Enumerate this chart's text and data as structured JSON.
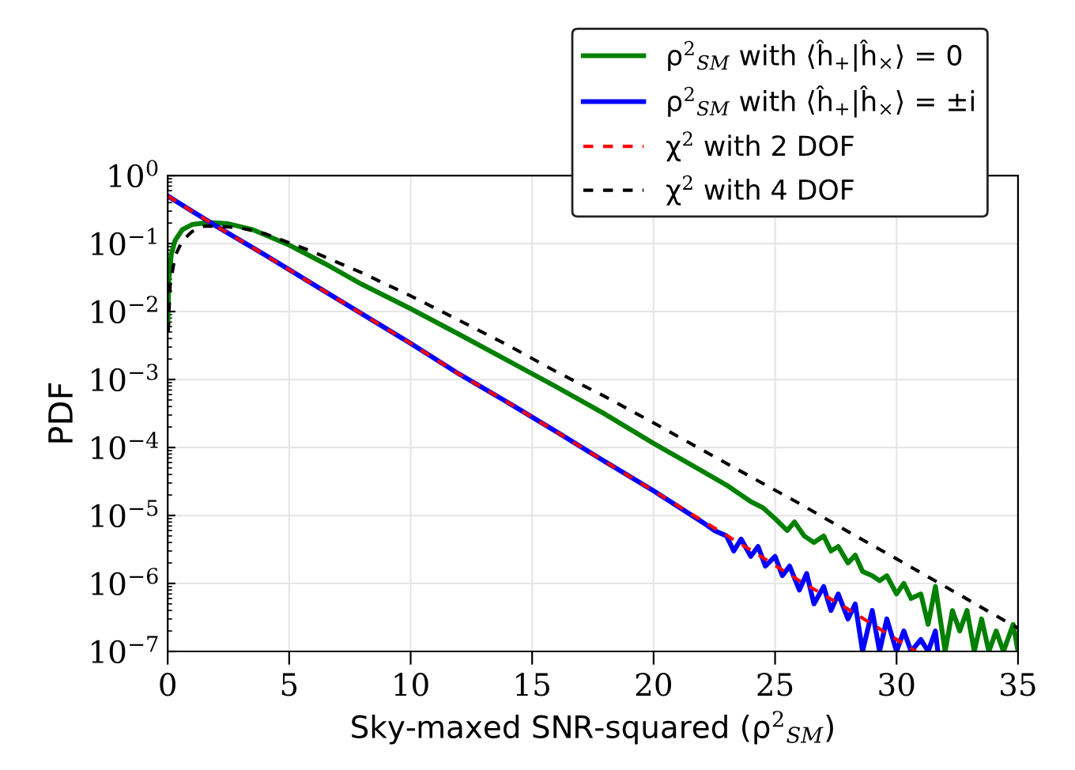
{
  "chart_data": {
    "type": "line",
    "xlabel": "Sky-maxed SNR-squared (ρ$^{2}$$_{SM}$)",
    "ylabel": "PDF",
    "log": "y",
    "xlim": [
      0,
      35
    ],
    "ylim": [
      1e-07,
      1
    ],
    "xticks": [
      0,
      5,
      10,
      15,
      20,
      25,
      30,
      35
    ],
    "yticks": [
      {
        "value": 1e-07,
        "label": "10$^{−7}$"
      },
      {
        "value": 1e-06,
        "label": "10$^{−6}$"
      },
      {
        "value": 1e-05,
        "label": "10$^{−5}$"
      },
      {
        "value": 0.0001,
        "label": "10$^{−4}$"
      },
      {
        "value": 0.001,
        "label": "10$^{−3}$"
      },
      {
        "value": 0.01,
        "label": "10$^{−2}$"
      },
      {
        "value": 0.1,
        "label": "10$^{−1}$"
      },
      {
        "value": 1,
        "label": "10$^{0}$"
      }
    ],
    "grid": true,
    "legend": "top",
    "marker": "none",
    "series": [
      {
        "name": "ρ$^{2}$$_{SM}$ with ⟨ĥ$_{+}$|ĥ$_{×}$⟩ = 0",
        "color": "#008000",
        "line_style": "solid",
        "x": [
          0,
          0.05,
          0.15,
          0.3,
          0.6,
          1,
          1.7,
          2.5,
          3.5,
          5,
          6.5,
          8,
          10,
          12,
          14,
          16,
          18,
          20,
          21,
          22,
          23,
          24,
          24.5,
          25,
          25.5,
          25.8,
          26.2,
          26.6,
          27,
          27.3,
          27.6,
          28,
          28.3,
          28.6,
          29,
          29.3,
          29.6,
          30,
          30.3,
          30.6,
          31,
          31.3,
          31.6,
          31.8,
          32,
          32.3,
          32.6,
          32.9,
          33.2,
          33.5,
          33.8,
          34.1,
          34.4,
          34.8,
          35
        ],
        "values": [
          0.006,
          0.03,
          0.07,
          0.11,
          0.16,
          0.19,
          0.205,
          0.195,
          0.16,
          0.095,
          0.05,
          0.025,
          0.011,
          0.0046,
          0.0019,
          0.00078,
          0.00031,
          0.000115,
          7.2e-05,
          4.5e-05,
          2.8e-05,
          1.6e-05,
          1.3e-05,
          9e-06,
          6e-06,
          8e-06,
          5e-06,
          4e-06,
          5e-06,
          3e-06,
          3.5e-06,
          2e-06,
          2.6e-06,
          1.5e-06,
          1.3e-06,
          1.1e-06,
          1.3e-06,
          7e-07,
          1e-06,
          6e-07,
          7e-07,
          2.5e-07,
          9e-07,
          3e-07,
          1e-07,
          4e-07,
          2e-07,
          4e-07,
          1e-07,
          3e-07,
          1e-07,
          2e-07,
          1e-07,
          2.5e-07,
          1e-07
        ]
      },
      {
        "name": "ρ$^{2}$$_{SM}$ with ⟨ĥ$_{+}$|ĥ$_{×}$⟩ = ±i",
        "color": "#0000ff",
        "line_style": "solid",
        "x": [
          0,
          2,
          4,
          6,
          8,
          10,
          12,
          14,
          16,
          18,
          20,
          22,
          22.5,
          23,
          23.3,
          23.6,
          24,
          24.3,
          24.6,
          25,
          25.3,
          25.6,
          26,
          26.3,
          26.6,
          27,
          27.3,
          27.6,
          28,
          28.3,
          28.6,
          29,
          29.3,
          29.6,
          30,
          30.3,
          30.6,
          31,
          31.3,
          31.6,
          31.7
        ],
        "values": [
          0.5,
          0.18,
          0.068,
          0.025,
          0.0092,
          0.0034,
          0.0012,
          0.00046,
          0.00017,
          6.2e-05,
          2.3e-05,
          8e-06,
          6e-06,
          5e-06,
          3e-06,
          4.5e-06,
          2.5e-06,
          3.5e-06,
          1.8e-06,
          2.5e-06,
          1.3e-06,
          1.8e-06,
          8e-07,
          1.4e-06,
          5e-07,
          9e-07,
          4e-07,
          7e-07,
          3e-07,
          5e-07,
          1e-07,
          4e-07,
          1e-07,
          3e-07,
          1e-07,
          2e-07,
          1e-07,
          1.5e-07,
          1e-07,
          2e-07,
          1e-07
        ]
      },
      {
        "name": "χ$^{2}$ with 2 DOF",
        "color": "#ff0000",
        "line_style": "dashed",
        "x": [
          0,
          2,
          4,
          6,
          8,
          10,
          12,
          14,
          16,
          18,
          20,
          22,
          24,
          26,
          28,
          30,
          30.8
        ],
        "values": [
          0.5,
          0.18,
          0.068,
          0.025,
          0.0092,
          0.0034,
          0.0012,
          0.00046,
          0.00017,
          6.2e-05,
          2.3e-05,
          8.4e-06,
          3.1e-06,
          1.1e-06,
          4.2e-07,
          1.5e-07,
          1e-07
        ]
      },
      {
        "name": "χ$^{2}$ with 4 DOF",
        "color": "#000000",
        "line_style": "dashed",
        "x": [
          0.02,
          0.1,
          0.3,
          0.6,
          1,
          1.5,
          2,
          3,
          4,
          6,
          8,
          10,
          12,
          14,
          16,
          18,
          20,
          22,
          24,
          26,
          28,
          30,
          32,
          34,
          35
        ],
        "values": [
          0.005,
          0.024,
          0.065,
          0.11,
          0.15,
          0.18,
          0.18,
          0.17,
          0.14,
          0.075,
          0.037,
          0.017,
          0.0074,
          0.0032,
          0.0013,
          0.00056,
          0.00023,
          9.2e-05,
          3.7e-05,
          1.5e-05,
          5.8e-06,
          2.3e-06,
          9e-07,
          3.5e-07,
          2.2e-07
        ]
      }
    ]
  }
}
